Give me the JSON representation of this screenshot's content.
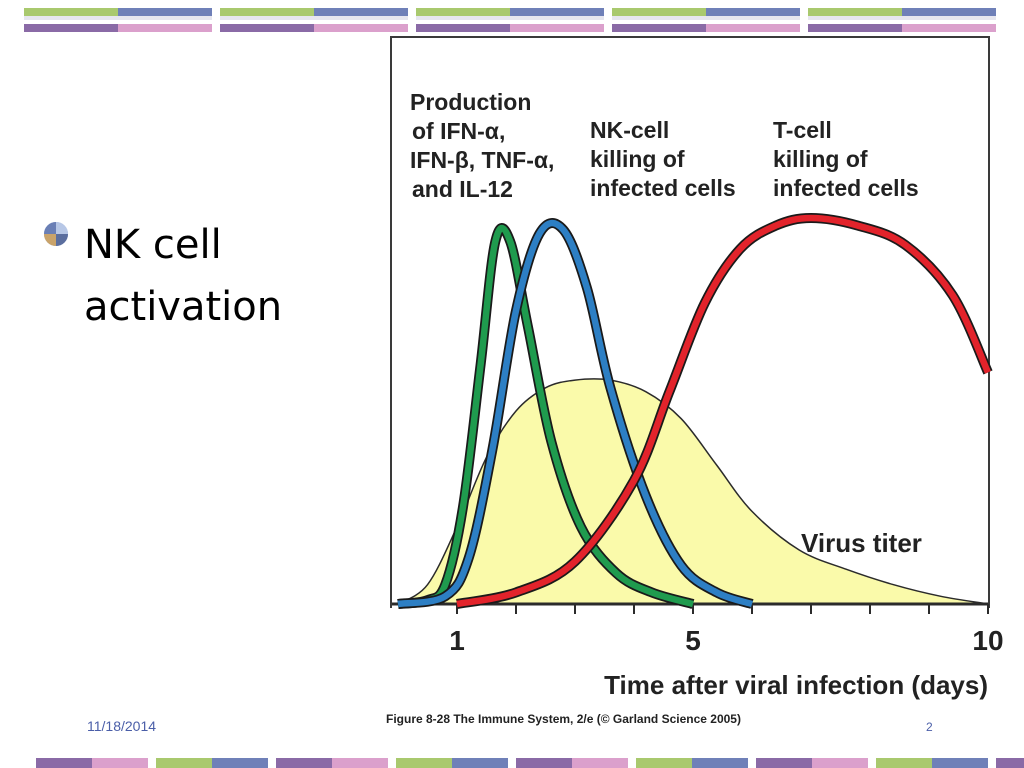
{
  "slide": {
    "bullet_text": "NK cell\nactivation",
    "date": "11/18/2014",
    "page_number": "2",
    "caption": "Figure 8-28  The Immune System, 2/e (© Garland Science 2005)"
  },
  "colors": {
    "green": "#a9c96e",
    "blue": "#6f80b8",
    "purple": "#8a6aa6",
    "pink": "#dba0cc",
    "cytokine_curve": "#1f9b4e",
    "nk_curve": "#2d7fc4",
    "tcell_curve": "#e2232b",
    "virus_fill": "#fafaaa"
  },
  "chart_data": {
    "type": "line",
    "xlabel": "Time after viral infection (days)",
    "ylabel": "",
    "xlim": [
      0,
      10
    ],
    "ylim": [
      0,
      1
    ],
    "x_ticks": [
      1,
      5,
      10
    ],
    "y_ticks": [],
    "series": [
      {
        "name": "Production of IFN-α, IFN-β, TNF-α, and IL-12",
        "label_lines": [
          "Production",
          "of  IFN-α,",
          "IFN-β, TNF-α,",
          "and  IL-12"
        ],
        "color": "#1f9b4e",
        "x": [
          0,
          0.5,
          0.8,
          1.1,
          1.4,
          1.65,
          1.9,
          2.2,
          2.6,
          3.1,
          3.7,
          4.3,
          5.0
        ],
        "y": [
          0,
          0.01,
          0.05,
          0.25,
          0.62,
          0.94,
          0.94,
          0.72,
          0.42,
          0.2,
          0.08,
          0.03,
          0
        ]
      },
      {
        "name": "NK-cell killing of infected cells",
        "label_lines": [
          "NK-cell",
          "killing of",
          "infected cells"
        ],
        "color": "#2d7fc4",
        "x": [
          0,
          0.8,
          1.2,
          1.6,
          2.0,
          2.4,
          2.8,
          3.2,
          3.6,
          4.2,
          4.8,
          5.4,
          6.0
        ],
        "y": [
          0,
          0.02,
          0.12,
          0.4,
          0.76,
          0.96,
          0.97,
          0.82,
          0.56,
          0.28,
          0.1,
          0.03,
          0
        ]
      },
      {
        "name": "T-cell killing of infected cells",
        "label_lines": [
          "T-cell",
          "killing of",
          "infected cells"
        ],
        "color": "#e2232b",
        "x": [
          1,
          2.0,
          3.0,
          4.0,
          4.6,
          5.2,
          5.8,
          6.4,
          7.0,
          7.8,
          8.6,
          9.4,
          10.0
        ],
        "y": [
          0,
          0.03,
          0.11,
          0.32,
          0.55,
          0.78,
          0.92,
          0.98,
          1.0,
          0.98,
          0.93,
          0.8,
          0.6
        ]
      },
      {
        "name": "Virus titer",
        "label_lines": [
          "Virus titer"
        ],
        "color": "#fafaaa",
        "x": [
          0,
          0.5,
          1.0,
          1.5,
          2.0,
          2.5,
          3.0,
          3.6,
          4.2,
          4.8,
          5.4,
          6.0,
          6.8,
          7.6,
          8.4,
          9.2,
          10.0
        ],
        "y": [
          0,
          0.05,
          0.2,
          0.38,
          0.5,
          0.56,
          0.58,
          0.58,
          0.55,
          0.48,
          0.36,
          0.24,
          0.14,
          0.09,
          0.05,
          0.02,
          0
        ]
      }
    ]
  }
}
